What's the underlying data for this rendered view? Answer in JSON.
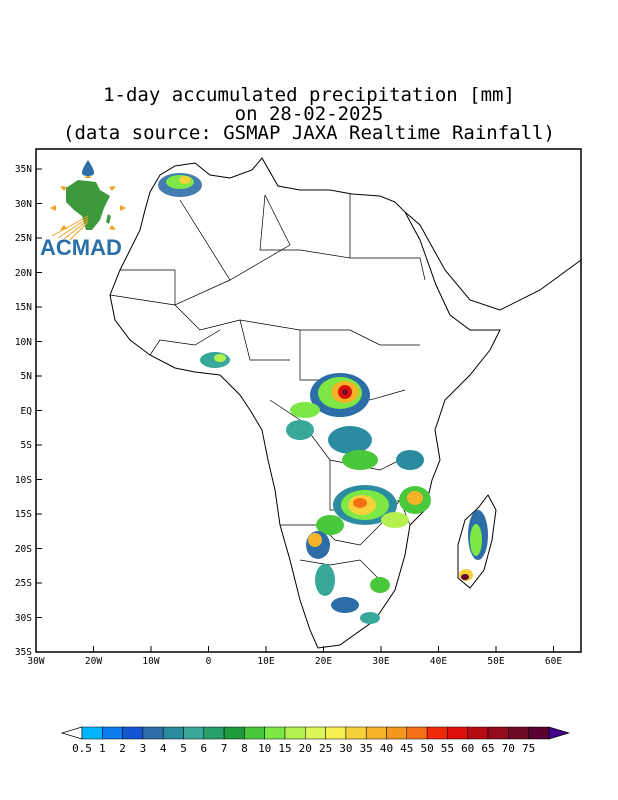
{
  "title": {
    "line1": "1-day accumulated precipitation [mm]",
    "line2": "on 28-02-2025",
    "line3": "(data source: GSMAP JAXA Realtime Rainfall)"
  },
  "logo": {
    "text": "ACMAD",
    "icon": "acmad-africa-logo"
  },
  "axes": {
    "lat_labels": [
      "35N",
      "30N",
      "25N",
      "20N",
      "15N",
      "10N",
      "5N",
      "EQ",
      "5S",
      "10S",
      "15S",
      "20S",
      "25S",
      "30S",
      "35S"
    ],
    "lon_labels": [
      "30W",
      "20W",
      "10W",
      "0",
      "10E",
      "20E",
      "30E",
      "40E",
      "50E",
      "60E"
    ]
  },
  "colorbar": {
    "labels": [
      "0.5",
      "1",
      "2",
      "3",
      "4",
      "5",
      "6",
      "7",
      "8",
      "10",
      "15",
      "20",
      "25",
      "30",
      "35",
      "40",
      "45",
      "50",
      "55",
      "60",
      "65",
      "70",
      "75"
    ],
    "colors": [
      "#00b4ff",
      "#0a7cf0",
      "#1455d2",
      "#2d6ea8",
      "#2b8ca0",
      "#37a89a",
      "#27a06a",
      "#1e9c3c",
      "#49c83c",
      "#7ce846",
      "#b4f050",
      "#dcf55a",
      "#f5f050",
      "#f5d23c",
      "#f5b428",
      "#f5961e",
      "#f56e14",
      "#f0280a",
      "#dc0f0a",
      "#b40a14",
      "#960a1e",
      "#6e0a23",
      "#5a0032",
      "#46008c"
    ],
    "under_color": "#ffffff",
    "over_color": "#46008c"
  }
}
